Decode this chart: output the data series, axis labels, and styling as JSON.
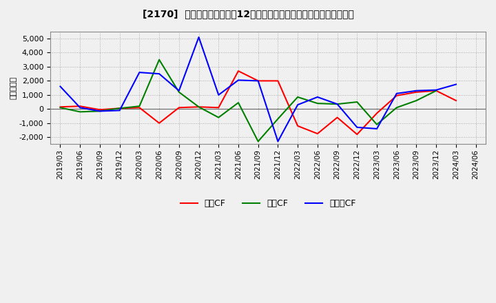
{
  "title": "[2170]  キャッシュフローの12か月移動合計の対前年同期増減額の推移",
  "ylabel": "（百万円）",
  "background_color": "#f0f0f0",
  "plot_bg_color": "#f0f0f0",
  "grid_color": "#aaaaaa",
  "x_labels": [
    "2019/03",
    "2019/06",
    "2019/09",
    "2019/12",
    "2020/03",
    "2020/06",
    "2020/09",
    "2020/12",
    "2021/03",
    "2021/06",
    "2021/09",
    "2021/12",
    "2022/03",
    "2022/06",
    "2022/09",
    "2022/12",
    "2023/03",
    "2023/06",
    "2023/09",
    "2023/12",
    "2024/03",
    "2024/06"
  ],
  "eigyo_cf": [
    150,
    200,
    -50,
    50,
    100,
    -1000,
    100,
    150,
    100,
    2700,
    2000,
    2000,
    -1200,
    -1750,
    -600,
    -1800,
    -300,
    950,
    1200,
    1300,
    600,
    null
  ],
  "toshi_cf": [
    100,
    -200,
    -150,
    50,
    200,
    3500,
    1200,
    150,
    -600,
    450,
    -2300,
    -700,
    850,
    400,
    350,
    500,
    -1100,
    100,
    600,
    1300,
    null,
    null
  ],
  "free_cf": [
    1600,
    100,
    -150,
    -100,
    2600,
    2500,
    1300,
    5100,
    1000,
    2050,
    2000,
    -2300,
    300,
    850,
    350,
    -1300,
    -1400,
    1100,
    1300,
    1350,
    1750,
    null
  ],
  "ylim": [
    -2500,
    5500
  ],
  "yticks": [
    -2000,
    -1000,
    0,
    1000,
    2000,
    3000,
    4000,
    5000
  ],
  "line_colors": {
    "eigyo": "#ff0000",
    "toshi": "#008000",
    "free": "#0000ff"
  },
  "legend_labels": {
    "eigyo": "営業CF",
    "toshi": "投資CF",
    "free": "フリーCF"
  }
}
